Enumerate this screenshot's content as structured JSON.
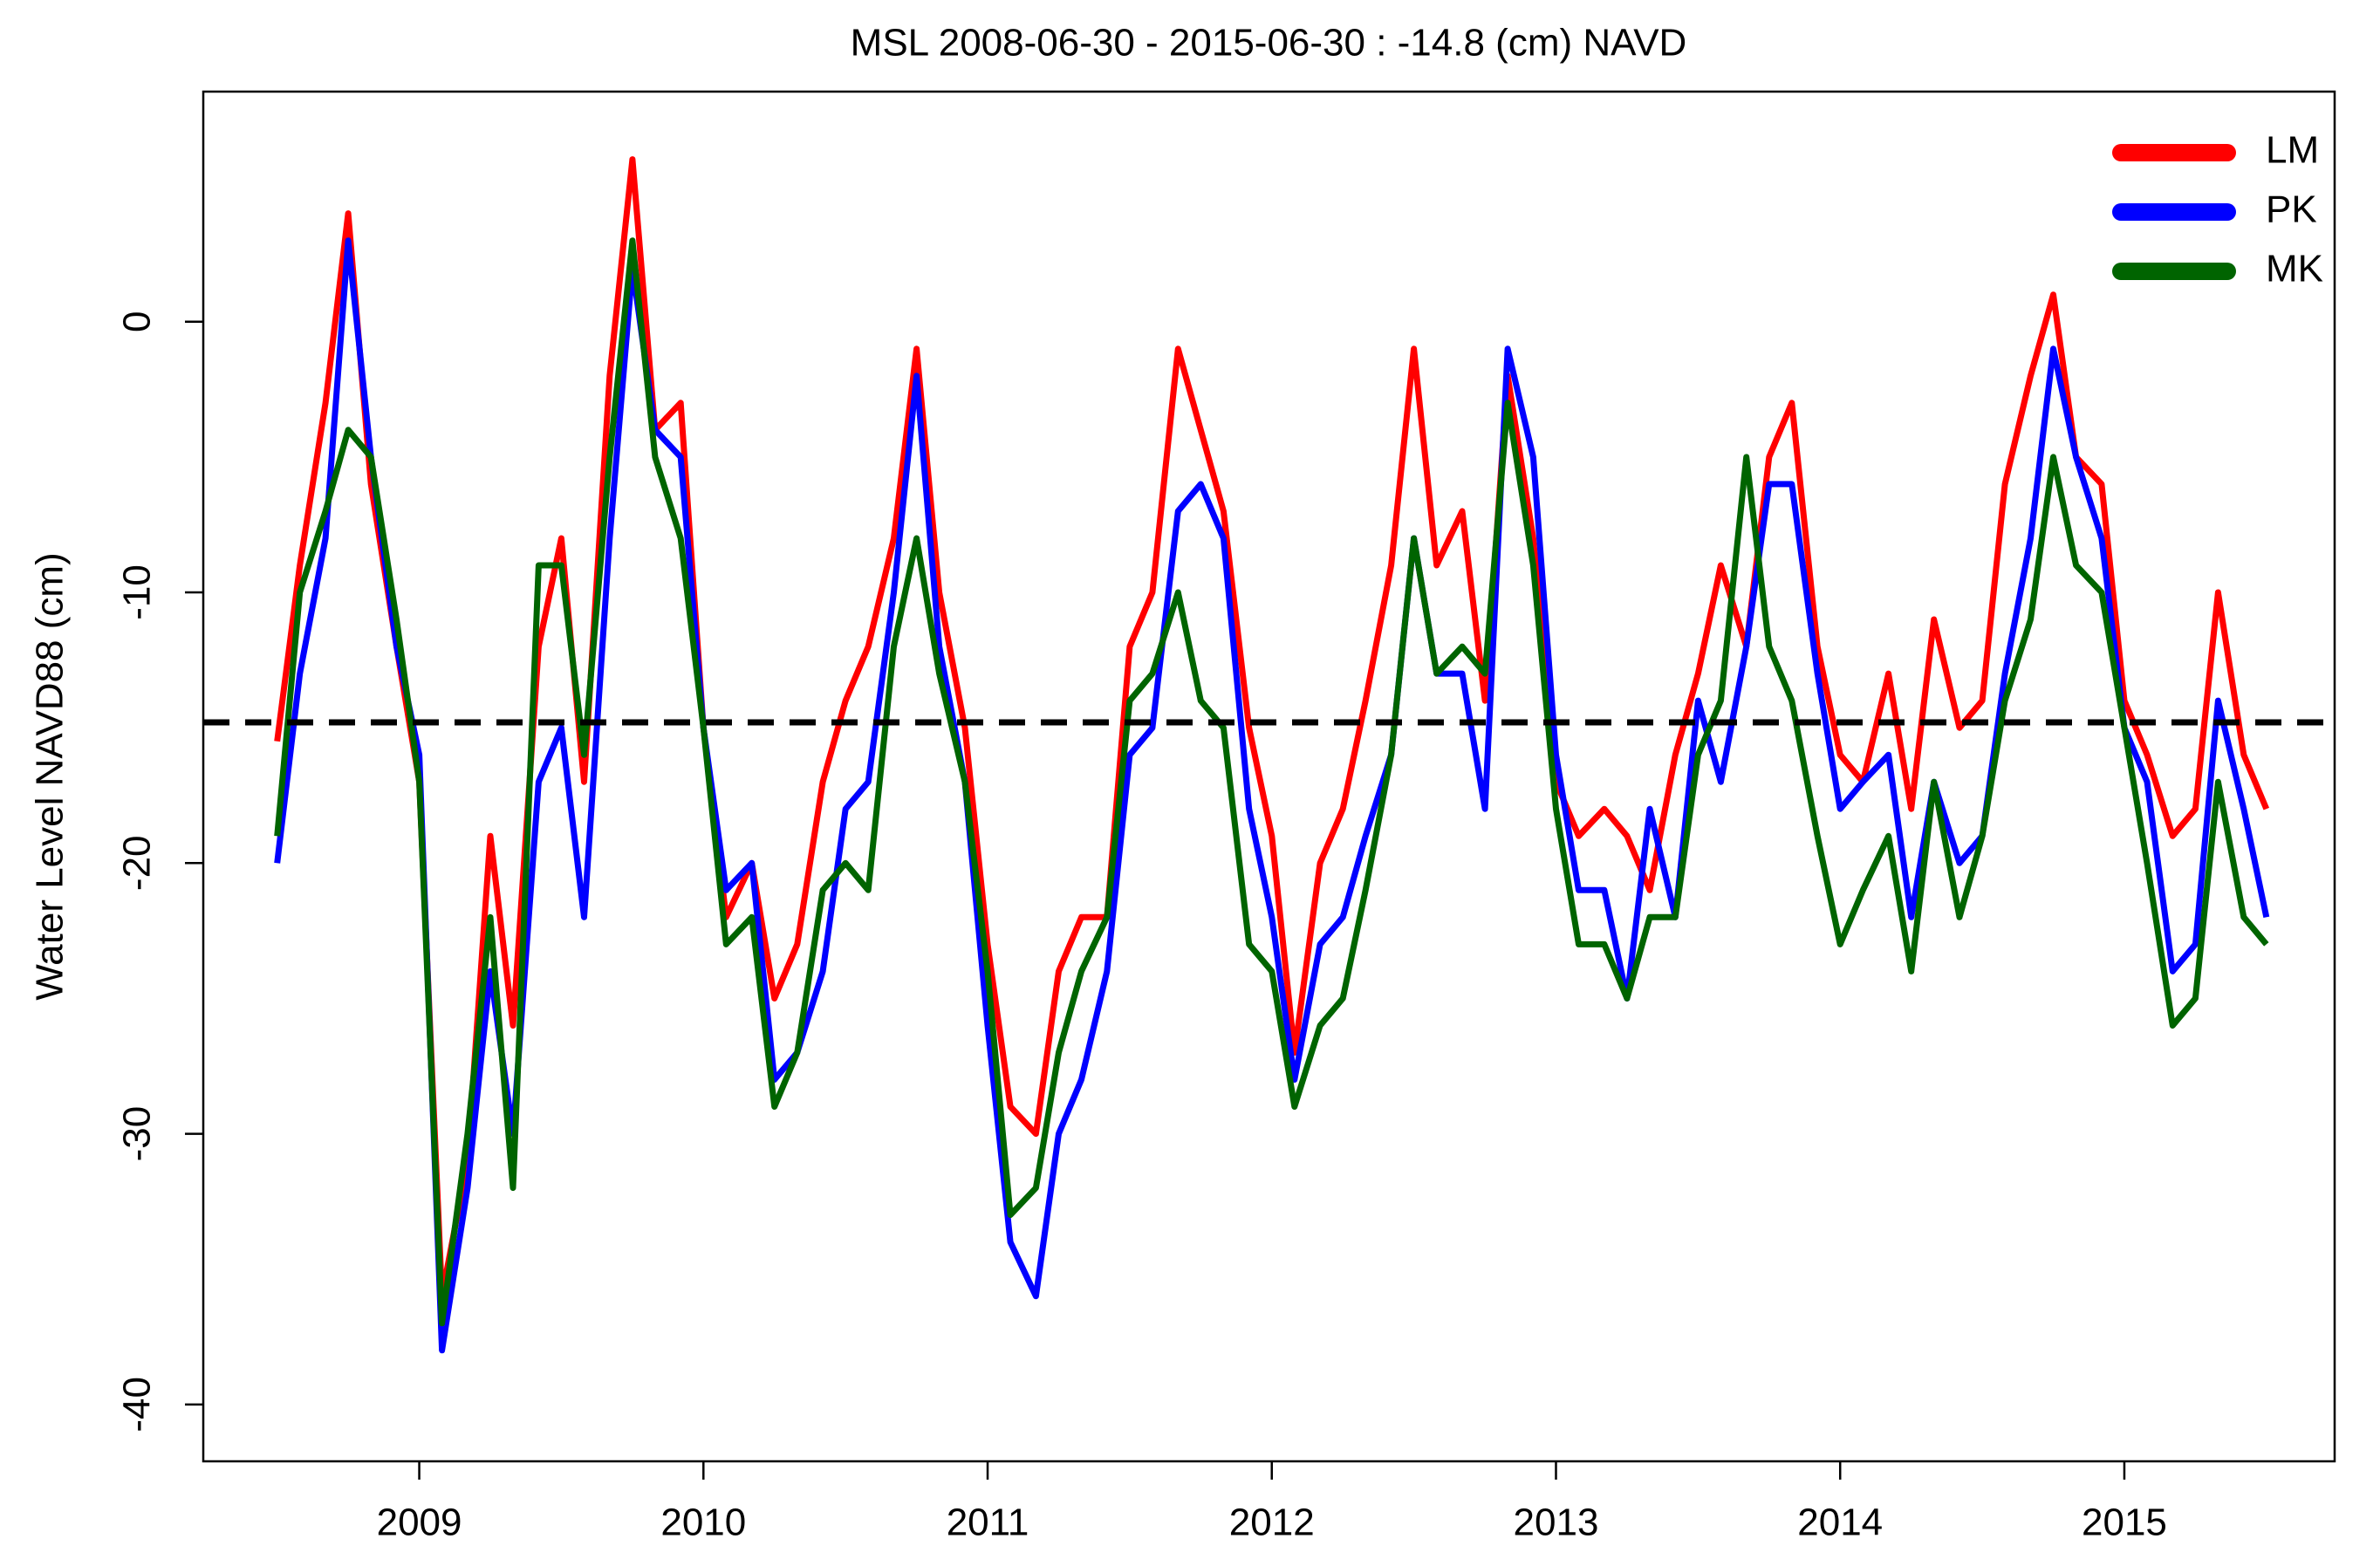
{
  "chart_data": {
    "type": "line",
    "title": "MSL 2008-06-30 - 2015-06-30 : -14.8 (cm) NAVD",
    "ylabel": "Water Level NAVD88 (cm)",
    "xlim": [
      2008.24,
      2015.74
    ],
    "ylim": [
      -42.1,
      8.5
    ],
    "xticks": [
      2009,
      2010,
      2011,
      2012,
      2013,
      2014,
      2015
    ],
    "yticks": [
      -40,
      -30,
      -20,
      -10,
      0
    ],
    "hline": -14.8,
    "legend": "topright",
    "x": [
      2008.5,
      2008.58,
      2008.67,
      2008.75,
      2008.83,
      2008.92,
      2009.0,
      2009.08,
      2009.17,
      2009.25,
      2009.33,
      2009.42,
      2009.5,
      2009.58,
      2009.67,
      2009.75,
      2009.83,
      2009.92,
      2010.0,
      2010.08,
      2010.17,
      2010.25,
      2010.33,
      2010.42,
      2010.5,
      2010.58,
      2010.67,
      2010.75,
      2010.83,
      2010.92,
      2011.0,
      2011.08,
      2011.17,
      2011.25,
      2011.33,
      2011.42,
      2011.5,
      2011.58,
      2011.67,
      2011.75,
      2011.83,
      2011.92,
      2012.0,
      2012.08,
      2012.17,
      2012.25,
      2012.33,
      2012.42,
      2012.5,
      2012.58,
      2012.67,
      2012.75,
      2012.83,
      2012.92,
      2013.0,
      2013.08,
      2013.17,
      2013.25,
      2013.33,
      2013.42,
      2013.5,
      2013.58,
      2013.67,
      2013.75,
      2013.83,
      2013.92,
      2014.0,
      2014.08,
      2014.17,
      2014.25,
      2014.33,
      2014.42,
      2014.5,
      2014.58,
      2014.67,
      2014.75,
      2014.83,
      2014.92,
      2015.0,
      2015.08,
      2015.17,
      2015.25,
      2015.33,
      2015.42,
      2015.5
    ],
    "series": [
      {
        "name": "LM",
        "color": "#ff0000",
        "values": [
          -15.5,
          -9,
          -3,
          4,
          -6,
          -12,
          -17,
          -36,
          -31,
          -19,
          -26,
          -12,
          -8,
          -17,
          -2,
          6,
          -4,
          -3,
          -15,
          -22,
          -20,
          -25,
          -23,
          -17,
          -14,
          -12,
          -8,
          -1,
          -10,
          -15,
          -23,
          -29,
          -30,
          -24,
          -22,
          -22,
          -12,
          -10,
          -1,
          -4,
          -7,
          -15,
          -19,
          -27,
          -20,
          -18,
          -14,
          -9,
          -1,
          -9,
          -7,
          -14,
          -2,
          -8,
          -17,
          -19,
          -18,
          -19,
          -21,
          -16,
          -13,
          -9,
          -12,
          -5,
          -3,
          -12,
          -16,
          -17,
          -13,
          -18,
          -11,
          -15,
          -14,
          -6,
          -2,
          1,
          -5,
          -6,
          -14,
          -16,
          -19,
          -18,
          -10,
          -16,
          -18
        ]
      },
      {
        "name": "PK",
        "color": "#0000ff",
        "values": [
          -20,
          -13,
          -8,
          3,
          -5,
          -12,
          -16,
          -38,
          -32,
          -24,
          -30,
          -17,
          -15,
          -22,
          -8,
          2,
          -4,
          -5,
          -15,
          -21,
          -20,
          -28,
          -27,
          -24,
          -18,
          -17,
          -10,
          -2,
          -12,
          -17,
          -26,
          -34,
          -36,
          -30,
          -28,
          -24,
          -16,
          -15,
          -7,
          -6,
          -8,
          -18,
          -22,
          -28,
          -23,
          -22,
          -19,
          -16,
          -8,
          -13,
          -13,
          -18,
          -1,
          -5,
          -16,
          -21,
          -21,
          -25,
          -18,
          -22,
          -14,
          -17,
          -12,
          -6,
          -6,
          -13,
          -18,
          -17,
          -16,
          -22,
          -17,
          -20,
          -19,
          -13,
          -8,
          -1,
          -5,
          -8,
          -15,
          -17,
          -24,
          -23,
          -14,
          -18,
          -22
        ]
      },
      {
        "name": "MK",
        "color": "#006400",
        "values": [
          -19,
          -10,
          -7,
          -4,
          -5,
          -11,
          -17,
          -37,
          -30,
          -22,
          -32,
          -9,
          -9,
          -16,
          -5,
          3,
          -5,
          -8,
          -15,
          -23,
          -22,
          -29,
          -27,
          -21,
          -20,
          -21,
          -12,
          -8,
          -13,
          -17,
          -24,
          -33,
          -32,
          -27,
          -24,
          -22,
          -14,
          -13,
          -10,
          -14,
          -15,
          -23,
          -24,
          -29,
          -26,
          -25,
          -21,
          -16,
          -8,
          -13,
          -12,
          -13,
          -3,
          -9,
          -18,
          -23,
          -23,
          -25,
          -22,
          -22,
          -16,
          -14,
          -5,
          -12,
          -14,
          -19,
          -23,
          -21,
          -19,
          -24,
          -17,
          -22,
          -19,
          -14,
          -11,
          -5,
          -9,
          -10,
          -15,
          -20,
          -26,
          -25,
          -17,
          -22,
          -23
        ]
      }
    ]
  }
}
